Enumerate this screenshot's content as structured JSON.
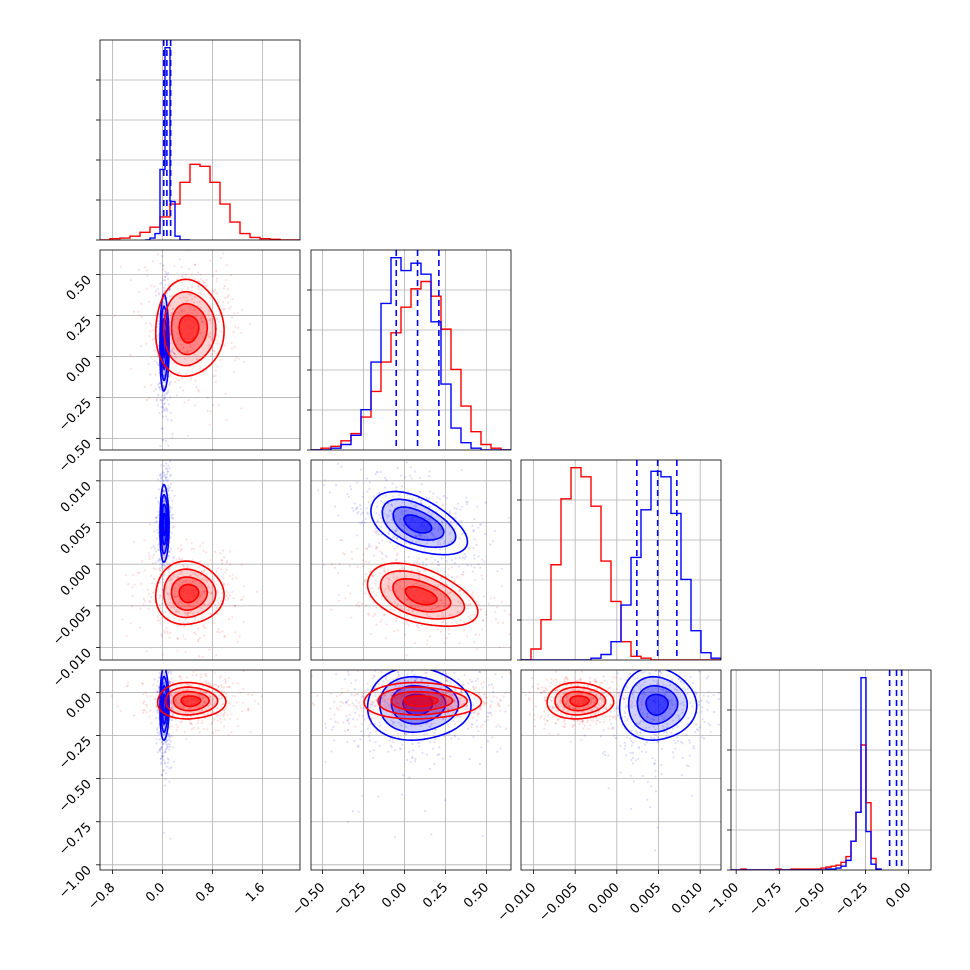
{
  "colors": {
    "red": "#ff0000",
    "blue": "#0000ff",
    "grid": "#b0b0b0",
    "frame": "#000000"
  },
  "chart_data": {
    "type": "corner",
    "grid": true,
    "series": [
      {
        "color": "#ff0000",
        "marks": "histograms, 2D density contours, scatter points"
      },
      {
        "color": "#0000ff",
        "marks": "histograms, 2D density contours, scatter points, dashed quantile lines"
      }
    ],
    "parameters": [
      {
        "index": 0,
        "range": [
          -1.0,
          2.2
        ],
        "ticks": [
          "−0.8",
          "0.0",
          "0.8",
          "1.6"
        ],
        "tick_values": [
          -0.8,
          0.0,
          0.8,
          1.6
        ]
      },
      {
        "index": 1,
        "range": [
          -0.57,
          0.65
        ],
        "ticks": [
          "−0.50",
          "−0.25",
          "0.00",
          "0.25",
          "0.50"
        ],
        "tick_values": [
          -0.5,
          -0.25,
          0.0,
          0.25,
          0.5
        ]
      },
      {
        "index": 2,
        "range": [
          -0.0115,
          0.0125
        ],
        "ticks": [
          "−0.010",
          "−0.005",
          "0.000",
          "0.005",
          "0.010"
        ],
        "tick_values": [
          -0.01,
          -0.005,
          0.0,
          0.005,
          0.01
        ]
      },
      {
        "index": 3,
        "range": [
          -1.03,
          0.13
        ],
        "ticks": [
          "−1.00",
          "−0.75",
          "−0.50",
          "−0.25",
          "0.00"
        ],
        "tick_values": [
          -1.0,
          -0.75,
          -0.5,
          -0.25,
          0.0
        ]
      }
    ],
    "y_axis_ticks": {
      "row1": {
        "ticks": [
          "−0.50",
          "−0.25",
          "0.00",
          "0.25",
          "0.50"
        ],
        "tick_values": [
          -0.5,
          -0.25,
          0.0,
          0.25,
          0.5
        ]
      },
      "row2": {
        "ticks": [
          "−0.010",
          "−0.005",
          "0.000",
          "0.005",
          "0.010"
        ],
        "tick_values": [
          -0.01,
          -0.005,
          0.0,
          0.005,
          0.01
        ]
      },
      "row3": {
        "ticks": [
          "−1.00",
          "−0.75",
          "−0.50",
          "−0.25",
          "0.00"
        ],
        "tick_values": [
          -1.0,
          -0.75,
          -0.5,
          -0.25,
          0.0
        ]
      }
    },
    "histograms": [
      {
        "param": 0,
        "red": {
          "edges_start": -1.0,
          "bin_width": 0.16,
          "counts": [
            0,
            2,
            3,
            6,
            12,
            20,
            36,
            56,
            90,
            118,
            115,
            90,
            56,
            28,
            10,
            4,
            2,
            1,
            0,
            0
          ]
        },
        "blue": {
          "edges_start": -0.28,
          "bin_width": 0.08,
          "counts": [
            0,
            3,
            10,
            110,
            300,
            60,
            6,
            0,
            0
          ]
        },
        "quantiles_blue": [
          0.02,
          0.07,
          0.13
        ]
      },
      {
        "param": 1,
        "red": {
          "edges_start": -0.57,
          "bin_width": 0.061,
          "counts": [
            0,
            1,
            2,
            5,
            9,
            18,
            32,
            48,
            64,
            78,
            88,
            92,
            84,
            66,
            44,
            24,
            10,
            3,
            1,
            0
          ]
        },
        "blue": {
          "edges_start": -0.57,
          "bin_width": 0.061,
          "counts": [
            0,
            0,
            1,
            3,
            8,
            22,
            48,
            80,
            105,
            98,
            102,
            96,
            70,
            36,
            12,
            4,
            1,
            0,
            0,
            0
          ]
        },
        "quantiles_blue": [
          -0.05,
          0.08,
          0.21
        ]
      },
      {
        "param": 2,
        "red": {
          "edges_start": -0.0115,
          "bin_width": 0.0012,
          "counts": [
            0,
            6,
            22,
            52,
            88,
            105,
            100,
            84,
            54,
            32,
            10,
            2,
            1,
            0,
            0,
            0,
            0,
            0,
            0,
            0
          ]
        },
        "blue": {
          "edges_start": -0.0115,
          "bin_width": 0.0012,
          "counts": [
            0,
            0,
            0,
            0,
            0,
            0,
            0,
            1,
            3,
            10,
            30,
            56,
            82,
            103,
            100,
            80,
            44,
            16,
            4,
            1
          ]
        },
        "quantiles_blue": [
          0.0024,
          0.0049,
          0.0072
        ]
      },
      {
        "param": 3,
        "red": {
          "edges_start": -1.03,
          "bin_width": 0.029,
          "counts": [
            0,
            0,
            1,
            0,
            0,
            0,
            0,
            0,
            0,
            1,
            0,
            0,
            1,
            1,
            1,
            1,
            1,
            1,
            2,
            3,
            4,
            5,
            8,
            14,
            30,
            60,
            130,
            70,
            12,
            1
          ]
        },
        "blue": {
          "edges_start": -1.03,
          "bin_width": 0.029,
          "counts": [
            0,
            0,
            0,
            0,
            0,
            0,
            0,
            0,
            0,
            0,
            0,
            0,
            0,
            0,
            0,
            0,
            0,
            0,
            0,
            1,
            1,
            2,
            4,
            10,
            30,
            60,
            200,
            40,
            6,
            1
          ]
        },
        "quantiles_blue": [
          -0.11,
          -0.07,
          -0.04
        ]
      }
    ],
    "scatter_panels": [
      {
        "x_param": 0,
        "y_param": 1,
        "red": {
          "center": [
            0.42,
            0.17
          ],
          "sd": [
            0.26,
            0.14
          ],
          "rho": 0.0
        },
        "blue": {
          "center": [
            0.03,
            0.08
          ],
          "sd": [
            0.035,
            0.14
          ],
          "rho": 0.0,
          "tail_down": true
        }
      },
      {
        "x_param": 0,
        "y_param": 2,
        "red": {
          "center": [
            0.42,
            -0.0035
          ],
          "sd": [
            0.26,
            0.0018
          ],
          "rho": 0.0
        },
        "blue": {
          "center": [
            0.03,
            0.0048
          ],
          "sd": [
            0.035,
            0.0022
          ],
          "rho": 0.0
        }
      },
      {
        "x_param": 1,
        "y_param": 2,
        "red": {
          "center": [
            0.1,
            -0.0038
          ],
          "sd": [
            0.16,
            0.0018
          ],
          "rho": -0.45
        },
        "blue": {
          "center": [
            0.08,
            0.0048
          ],
          "sd": [
            0.14,
            0.0018
          ],
          "rho": -0.5
        }
      },
      {
        "x_param": 0,
        "y_param": 3,
        "red": {
          "center": [
            0.45,
            -0.05
          ],
          "sd": [
            0.26,
            0.05
          ],
          "rho": 0.0
        },
        "blue": {
          "center": [
            0.03,
            -0.07
          ],
          "sd": [
            0.035,
            0.1
          ],
          "rho": 0.0,
          "tail_down": true
        }
      },
      {
        "x_param": 1,
        "y_param": 3,
        "red": {
          "center": [
            0.1,
            -0.05
          ],
          "sd": [
            0.17,
            0.05
          ],
          "rho": 0.0
        },
        "blue": {
          "center": [
            0.08,
            -0.07
          ],
          "sd": [
            0.15,
            0.1
          ],
          "rho": 0.0,
          "tail_down": true
        }
      },
      {
        "x_param": 2,
        "y_param": 3,
        "red": {
          "center": [
            -0.0045,
            -0.05
          ],
          "sd": [
            0.0019,
            0.05
          ],
          "rho": 0.0
        },
        "blue": {
          "center": [
            0.0048,
            -0.07
          ],
          "sd": [
            0.0022,
            0.1
          ],
          "rho": 0.0,
          "tail_down": true
        }
      }
    ]
  }
}
